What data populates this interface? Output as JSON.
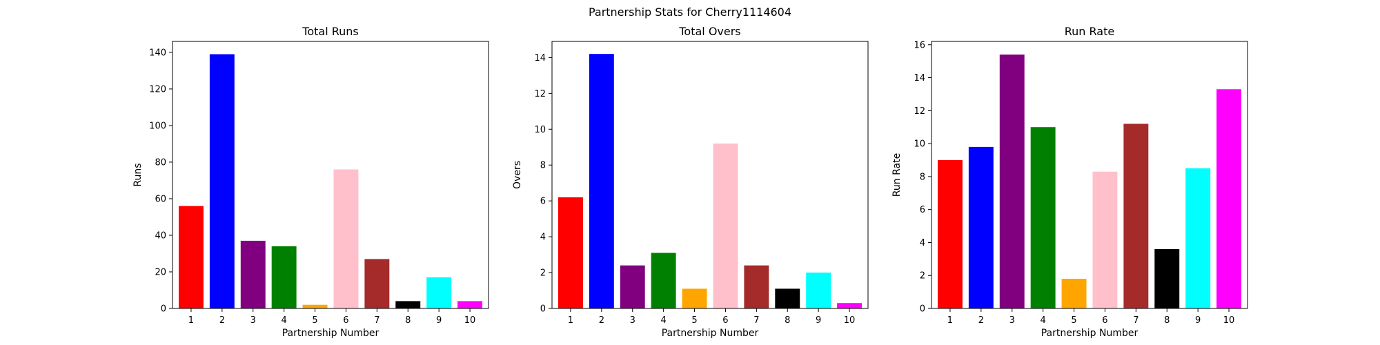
{
  "figure": {
    "suptitle": "Partnership Stats for Cherry1114604"
  },
  "chart_data": [
    {
      "type": "bar",
      "title": "Total Runs",
      "xlabel": "Partnership Number",
      "ylabel": "Runs",
      "categories": [
        "1",
        "2",
        "3",
        "4",
        "5",
        "6",
        "7",
        "8",
        "9",
        "10"
      ],
      "values": [
        56,
        139,
        37,
        34,
        2,
        76,
        27,
        4,
        17,
        4
      ],
      "colors": [
        "#ff0000",
        "#0000ff",
        "#800080",
        "#008000",
        "#ffa500",
        "#ffc0cb",
        "#a52a2a",
        "#000000",
        "#00ffff",
        "#ff00ff"
      ],
      "ylim": [
        0,
        146
      ],
      "yticks": [
        0,
        20,
        40,
        60,
        80,
        100,
        120,
        140
      ],
      "grid": false
    },
    {
      "type": "bar",
      "title": "Total Overs",
      "xlabel": "Partnership Number",
      "ylabel": "Overs",
      "categories": [
        "1",
        "2",
        "3",
        "4",
        "5",
        "6",
        "7",
        "8",
        "9",
        "10"
      ],
      "values": [
        6.2,
        14.2,
        2.4,
        3.1,
        1.1,
        9.2,
        2.4,
        1.1,
        2.0,
        0.3
      ],
      "colors": [
        "#ff0000",
        "#0000ff",
        "#800080",
        "#008000",
        "#ffa500",
        "#ffc0cb",
        "#a52a2a",
        "#000000",
        "#00ffff",
        "#ff00ff"
      ],
      "ylim": [
        0,
        14.9
      ],
      "yticks": [
        0,
        2,
        4,
        6,
        8,
        10,
        12,
        14
      ],
      "grid": false
    },
    {
      "type": "bar",
      "title": "Run Rate",
      "xlabel": "Partnership Number",
      "ylabel": "Run Rate",
      "categories": [
        "1",
        "2",
        "3",
        "4",
        "5",
        "6",
        "7",
        "8",
        "9",
        "10"
      ],
      "values": [
        9.0,
        9.8,
        15.4,
        11.0,
        1.8,
        8.3,
        11.2,
        3.6,
        8.5,
        13.3
      ],
      "colors": [
        "#ff0000",
        "#0000ff",
        "#800080",
        "#008000",
        "#ffa500",
        "#ffc0cb",
        "#a52a2a",
        "#000000",
        "#00ffff",
        "#ff00ff"
      ],
      "ylim": [
        0,
        16.2
      ],
      "yticks": [
        0,
        2,
        4,
        6,
        8,
        10,
        12,
        14,
        16
      ],
      "grid": false
    }
  ]
}
